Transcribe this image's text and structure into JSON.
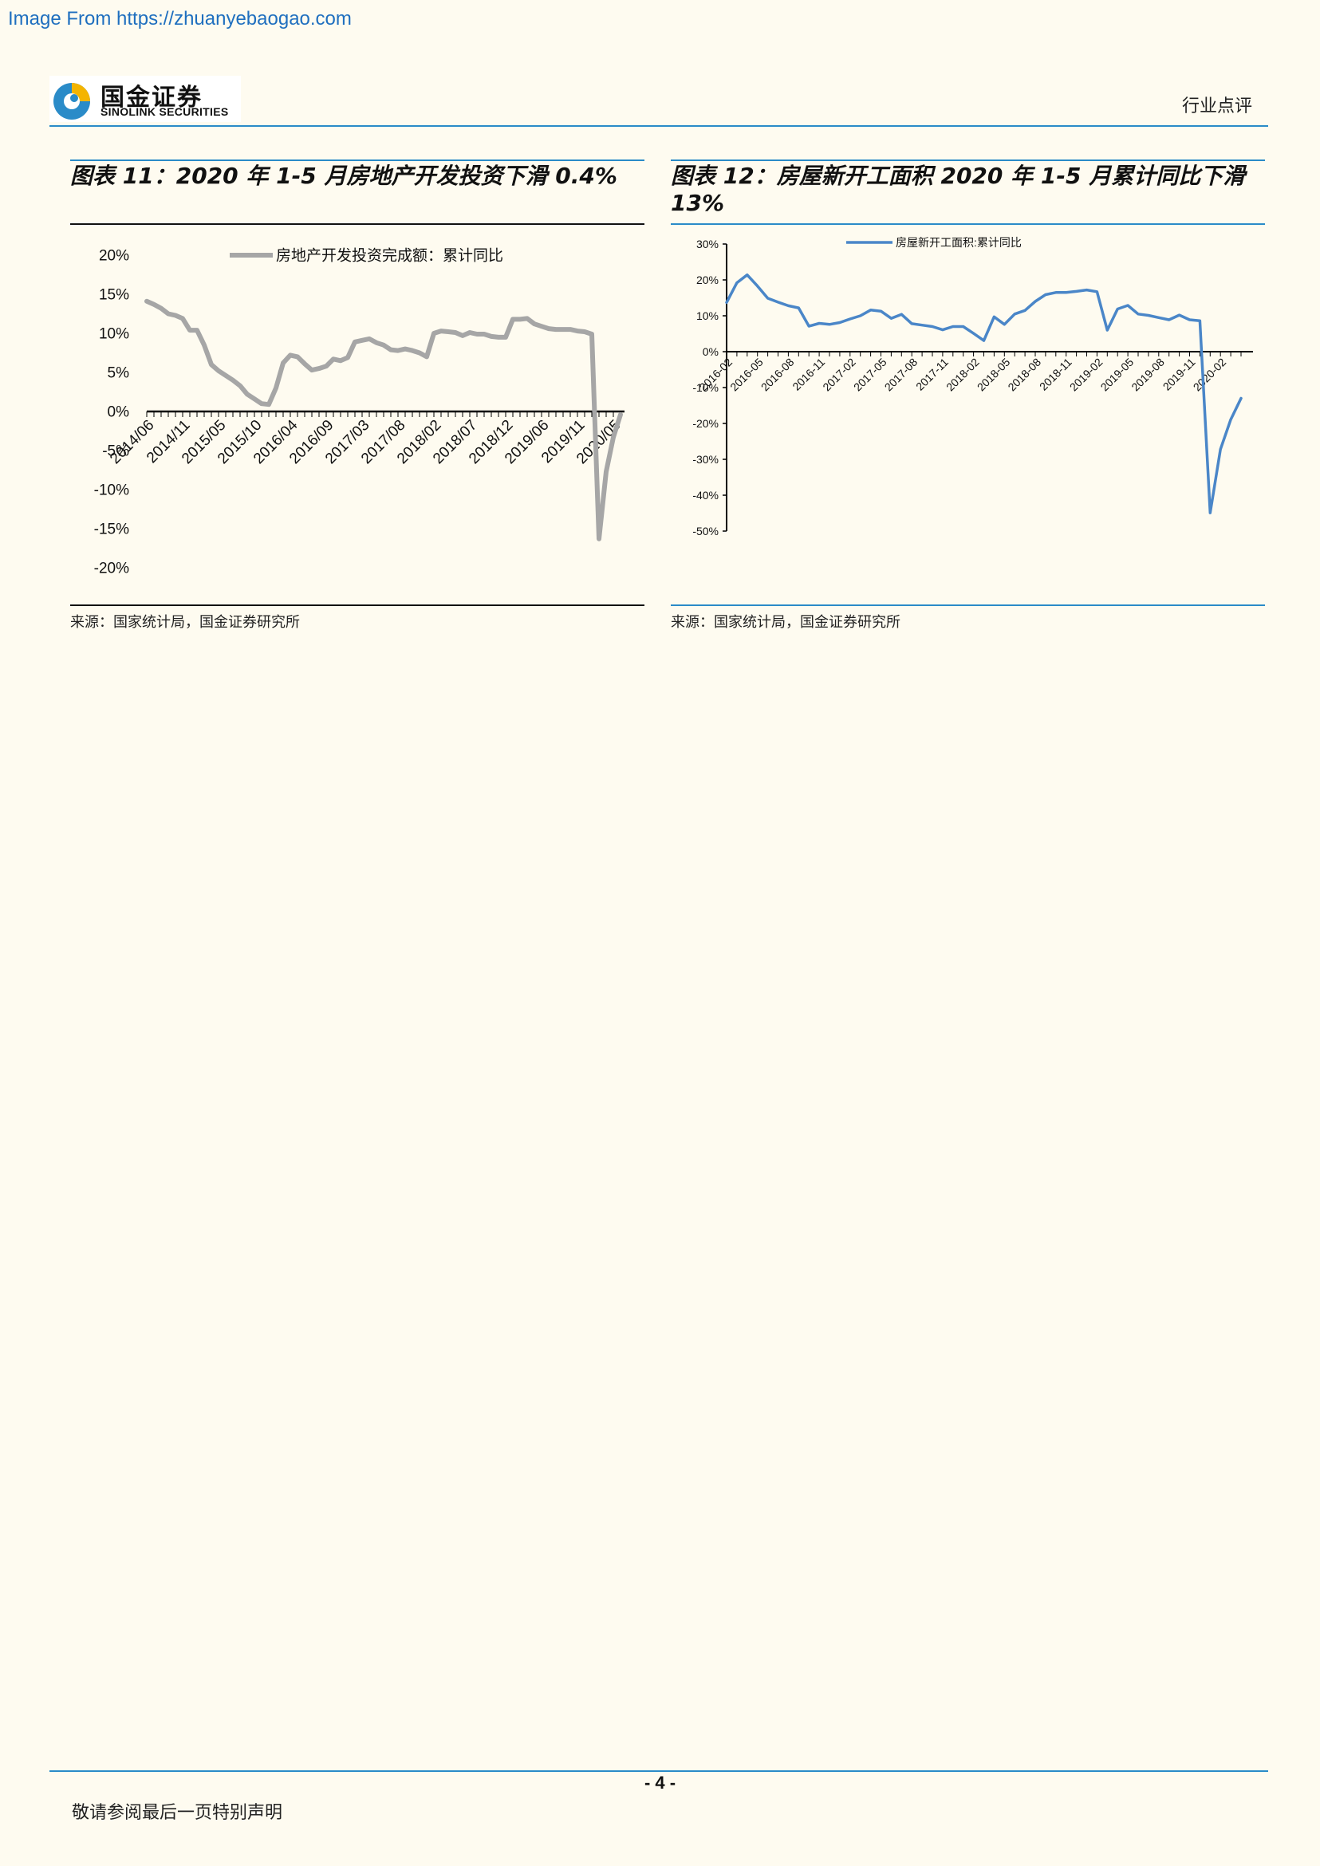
{
  "watermark": "Image From https://zhuanyebaogao.com",
  "header": {
    "logo_cn": "国金证券",
    "logo_en": "SINOLINK SECURITIES",
    "section_label": "行业点评"
  },
  "figures": [
    {
      "title": "图表 11：2020 年 1-5 月房地产开发投资下滑 0.4%",
      "source": "来源：国家统计局，国金证券研究所"
    },
    {
      "title": "图表 12：房屋新开工面积 2020 年 1-5 月累计同比下滑 13%",
      "source": "来源：国家统计局，国金证券研究所"
    }
  ],
  "chart_data": [
    {
      "type": "line",
      "legend": "房地产开发投资完成额：累计同比",
      "color": "#a6a6a6",
      "ylim": [
        -20,
        20
      ],
      "yticks": [
        "20%",
        "15%",
        "10%",
        "5%",
        "0%",
        "-5%",
        "-10%",
        "-15%",
        "-20%"
      ],
      "xtick_labels": [
        "2014/06",
        "2014/11",
        "2015/05",
        "2015/10",
        "2016/04",
        "2016/09",
        "2017/03",
        "2017/08",
        "2018/02",
        "2018/07",
        "2018/12",
        "2019/06",
        "2019/11",
        "2020/05"
      ],
      "series": [
        {
          "name": "房地产开发投资完成额：累计同比",
          "values": [
            14.1,
            13.7,
            13.2,
            12.5,
            12.3,
            11.9,
            10.4,
            10.4,
            8.5,
            6.0,
            5.2,
            4.6,
            4.0,
            3.3,
            2.2,
            1.6,
            1.0,
            0.9,
            3.0,
            6.2,
            7.2,
            7.0,
            6.1,
            5.3,
            5.5,
            5.8,
            6.7,
            6.5,
            6.9,
            8.9,
            9.1,
            9.3,
            8.8,
            8.5,
            7.9,
            7.8,
            8.0,
            7.8,
            7.5,
            7.0,
            10.0,
            10.3,
            10.2,
            10.1,
            9.7,
            10.1,
            9.9,
            9.9,
            9.6,
            9.5,
            9.5,
            11.8,
            11.8,
            11.9,
            11.2,
            10.9,
            10.6,
            10.5,
            10.5,
            10.5,
            10.3,
            10.2,
            9.9,
            -16.3,
            -7.7,
            -3.3,
            -0.4
          ]
        }
      ]
    },
    {
      "type": "line",
      "legend": "房屋新开工面积:累计同比",
      "color": "#4a86c8",
      "ylim": [
        -50,
        30
      ],
      "yticks": [
        "30%",
        "20%",
        "10%",
        "0%",
        "-10%",
        "-20%",
        "-30%",
        "-40%",
        "-50%"
      ],
      "xtick_labels": [
        "2016-02",
        "2016-05",
        "2016-08",
        "2016-11",
        "2017-02",
        "2017-05",
        "2017-08",
        "2017-11",
        "2018-02",
        "2018-05",
        "2018-08",
        "2018-11",
        "2019-02",
        "2019-05",
        "2019-08",
        "2019-11",
        "2020-02"
      ],
      "series": [
        {
          "name": "房屋新开工面积:累计同比",
          "values": [
            13.7,
            19.2,
            21.4,
            18.3,
            14.9,
            13.8,
            12.8,
            12.2,
            7.1,
            7.9,
            7.6,
            8.1,
            9.1,
            10.0,
            11.6,
            11.3,
            9.3,
            10.4,
            7.8,
            7.4,
            7.0,
            6.1,
            7.0,
            7.0,
            5.1,
            3.1,
            9.7,
            7.6,
            10.5,
            11.5,
            14.0,
            15.9,
            16.5,
            16.5,
            16.8,
            17.2,
            16.7,
            6.0,
            11.9,
            12.9,
            10.5,
            10.1,
            9.5,
            8.9,
            10.2,
            8.9,
            8.6,
            -44.9,
            -27.2,
            -18.9,
            -13.0
          ]
        }
      ]
    }
  ],
  "footer": {
    "page_no": "- 4 -",
    "disclaimer": "敬请参阅最后一页特别声明"
  }
}
